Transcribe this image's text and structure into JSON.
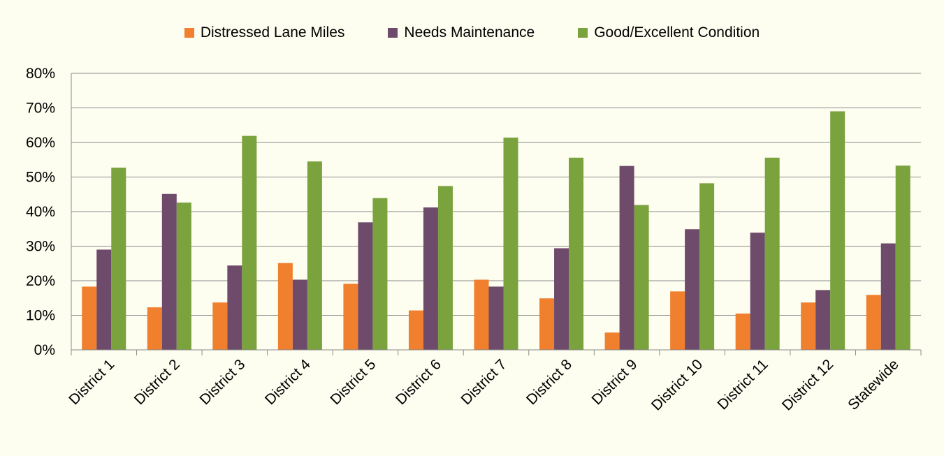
{
  "chart_data": {
    "type": "bar",
    "title": "",
    "xlabel": "",
    "ylabel": "",
    "ylim": [
      0,
      80
    ],
    "y_ticks": [
      "0%",
      "10%",
      "20%",
      "30%",
      "40%",
      "50%",
      "60%",
      "70%",
      "80%"
    ],
    "grid": true,
    "legend_position": "top",
    "categories": [
      "District 1",
      "District 2",
      "District 3",
      "District 4",
      "District 5",
      "District 6",
      "District 7",
      "District 8",
      "District 9",
      "District 10",
      "District 11",
      "District 12",
      "Statewide"
    ],
    "series": [
      {
        "name": "Distressed Lane Miles",
        "color": "#f07f2e",
        "values": [
          18.3,
          12.3,
          13.7,
          25.1,
          19.1,
          11.4,
          20.3,
          14.9,
          5.0,
          16.9,
          10.5,
          13.7,
          15.9
        ]
      },
      {
        "name": "Needs Maintenance",
        "color": "#6e4b6a",
        "values": [
          29.0,
          45.1,
          24.4,
          20.3,
          36.9,
          41.2,
          18.3,
          29.4,
          53.2,
          34.9,
          33.9,
          17.3,
          30.8
        ]
      },
      {
        "name": "Good/Excellent Condition",
        "color": "#7aa23d",
        "values": [
          52.7,
          42.6,
          61.9,
          54.5,
          43.9,
          47.4,
          61.4,
          55.6,
          41.9,
          48.2,
          55.6,
          69.0,
          53.3
        ]
      }
    ]
  }
}
